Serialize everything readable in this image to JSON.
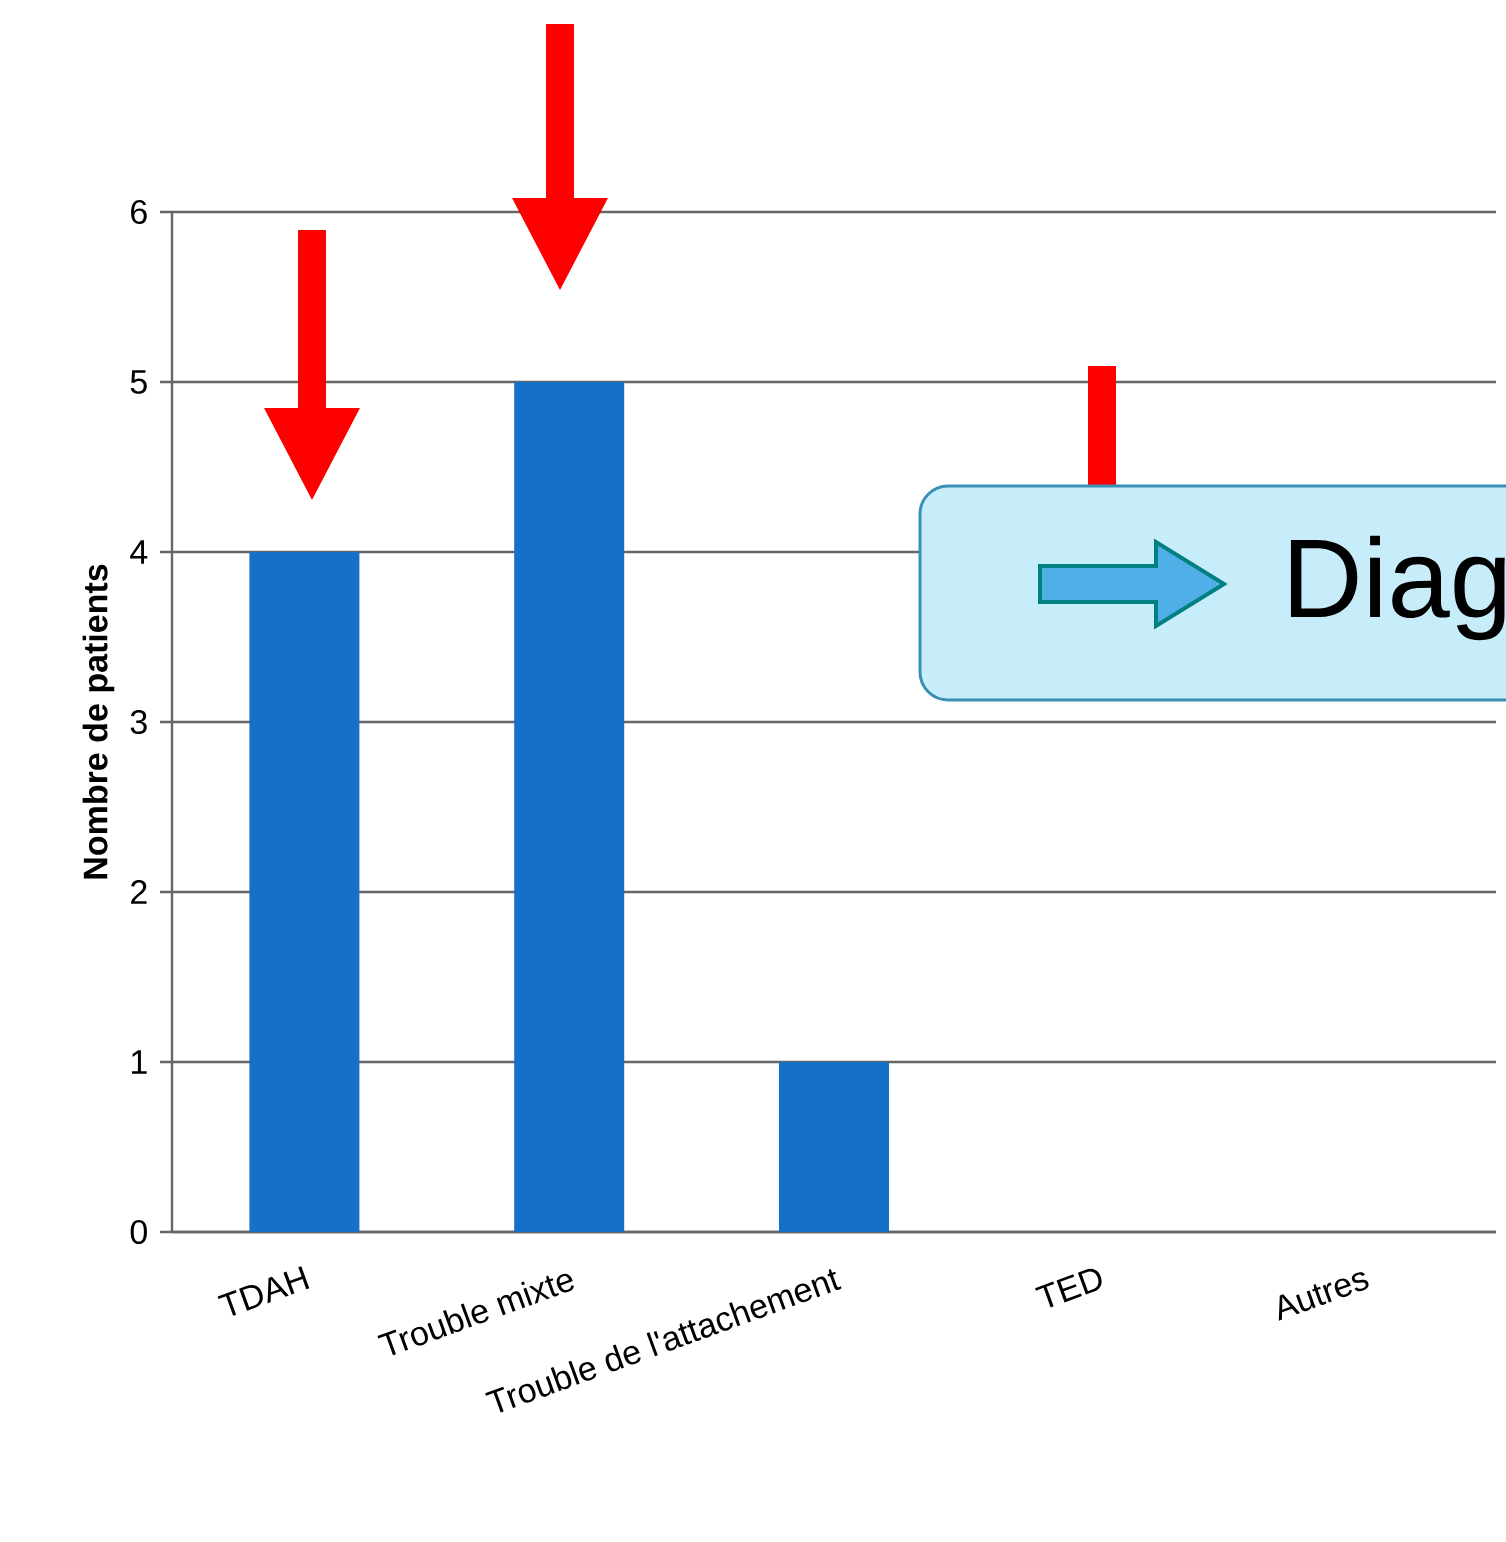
{
  "chart_data": {
    "type": "bar",
    "ylabel": "Nombre de patients",
    "categories": [
      "TDAH",
      "Trouble mixte",
      "Trouble de l'attachement",
      "TED",
      "Autres"
    ],
    "values": [
      4,
      5,
      1,
      null,
      null
    ],
    "color": "#1570c8",
    "ylim": [
      0,
      6
    ],
    "yticks": [
      0,
      1,
      2,
      3,
      4,
      5,
      6
    ],
    "grid": "y",
    "annotations": [
      "Diag"
    ]
  }
}
